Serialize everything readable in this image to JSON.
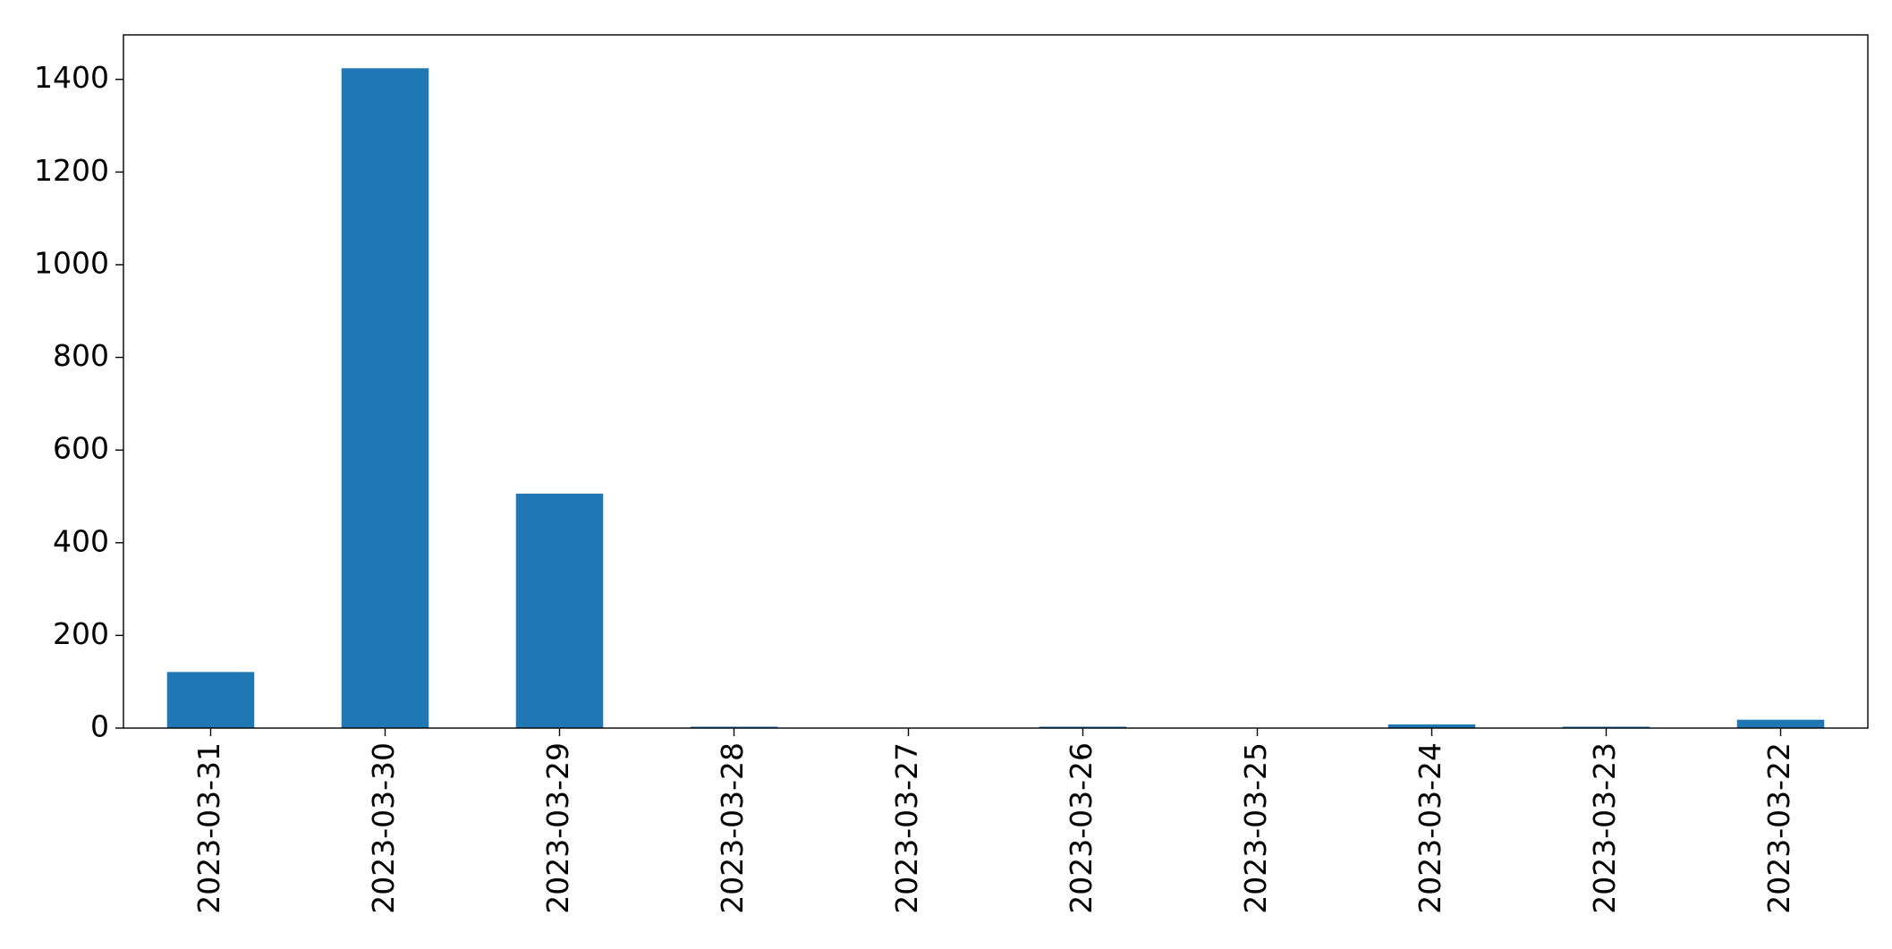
{
  "chart_data": {
    "type": "bar",
    "categories": [
      "2023-03-31",
      "2023-03-30",
      "2023-03-29",
      "2023-03-28",
      "2023-03-27",
      "2023-03-26",
      "2023-03-25",
      "2023-03-24",
      "2023-03-23",
      "2023-03-22"
    ],
    "values": [
      121,
      1424,
      506,
      3,
      1,
      3,
      1,
      8,
      3,
      18
    ],
    "color": "#1f77b4",
    "ylim": [
      0,
      1496
    ],
    "yticks": [
      0,
      200,
      400,
      600,
      800,
      1000,
      1200,
      1400
    ],
    "grid": false
  }
}
